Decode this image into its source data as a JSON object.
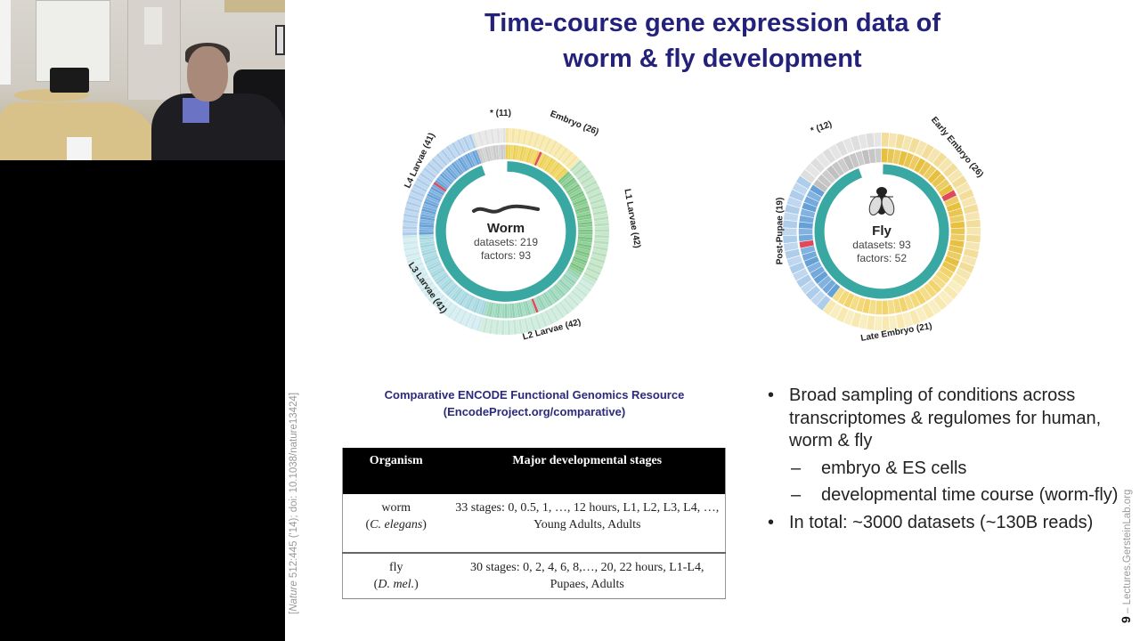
{
  "webcam": {
    "description": "Presenter video feed in office"
  },
  "slide": {
    "title_line1": "Time-course gene expression data of",
    "title_line2": "worm & fly development",
    "resource_line1": "Comparative ENCODE Functional Genomics Resource",
    "resource_line2": "(EncodeProject.org/comparative)",
    "citation_italic": "Nature",
    "citation_rest": " 512:445 ('14);  doi: 10.1038/nature13424]",
    "citation_open": "[",
    "page_number": "9",
    "credit_separator": " – ",
    "credit_site": "Lectures.GersteinLab.org",
    "table": {
      "headers": [
        "Organism",
        "Major developmental stages"
      ],
      "rows": [
        {
          "organism": "worm",
          "species": "C. elegans",
          "stages": "33 stages: 0, 0.5, 1, …, 12 hours, L1, L2, L3, L4, …, Young Adults, Adults"
        },
        {
          "organism": "fly",
          "species": "D. mel.",
          "stages": "30 stages: 0, 2, 4, 6, 8,…, 20, 22 hours, L1-L4, Pupaes, Adults"
        }
      ]
    },
    "bullets": {
      "b1": "Broad sampling of conditions across transcriptomes & regulomes for human, worm & fly",
      "b1_sub1": "embryo & ES cells",
      "b1_sub2": "developmental time course (worm-fly)",
      "b2": "In total: ~3000 datasets (~130B reads)"
    }
  },
  "chart_data": [
    {
      "type": "pie",
      "title": "Worm",
      "center_lines": [
        "datasets: 219",
        "factors: 93"
      ],
      "categories": [
        "Embryo",
        "L1 Larvae",
        "L2 Larvae",
        "L3 Larvae",
        "L4 Larvae",
        "*"
      ],
      "values": [
        26,
        42,
        42,
        41,
        41,
        11
      ],
      "labels": [
        "Embryo (26)",
        "L1 Larvae (42)",
        "L2 Larvae (42)",
        "L3 Larvae (41)",
        "L4 Larvae (41)",
        "* (11)"
      ],
      "colors": [
        "#e9c62e",
        "#5fb86a",
        "#7ecaa6",
        "#8fcdd8",
        "#4a8fd0",
        "#bfbfbf"
      ],
      "inner_ring_color": "#3aa8a2",
      "highlight_color": "#e04a58"
    },
    {
      "type": "pie",
      "title": "Fly",
      "center_lines": [
        "datasets: 93",
        "factors: 52"
      ],
      "categories": [
        "Early Embryo",
        "Late Embryo",
        "Post-Pupae",
        "*"
      ],
      "values": [
        26,
        21,
        19,
        12
      ],
      "labels": [
        "Early Embryo (26)",
        "Late Embryo (21)",
        "Post-Pupae (19)",
        "* (12)"
      ],
      "colors": [
        "#e3b51e",
        "#efcd52",
        "#4a8fd0",
        "#b5b5b5"
      ],
      "inner_ring_color": "#3aa8a2",
      "highlight_color": "#e04a58"
    }
  ]
}
